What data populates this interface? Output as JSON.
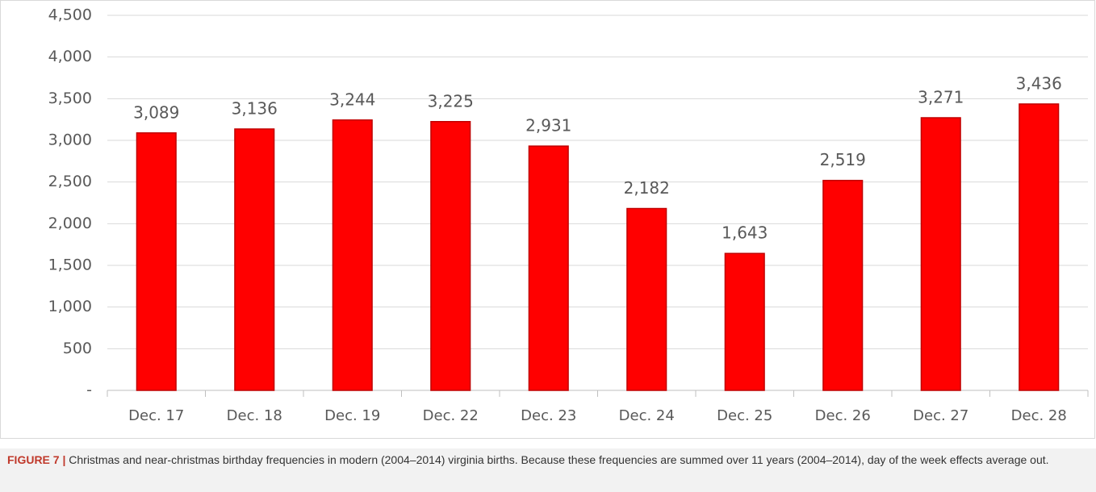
{
  "chart_data": {
    "type": "bar",
    "categories": [
      "Dec. 17",
      "Dec. 18",
      "Dec. 19",
      "Dec. 22",
      "Dec. 23",
      "Dec. 24",
      "Dec. 25",
      "Dec. 26",
      "Dec. 27",
      "Dec. 28"
    ],
    "values": [
      3089,
      3136,
      3244,
      3225,
      2931,
      2182,
      1643,
      2519,
      3271,
      3436
    ],
    "value_labels": [
      "3,089",
      "3,136",
      "3,244",
      "3,225",
      "2,931",
      "2,182",
      "1,643",
      "2,519",
      "3,271",
      "3,436"
    ],
    "color": "#ff0000",
    "ylim": [
      0,
      4500
    ],
    "yticks": [
      {
        "value": 0,
        "label": "-"
      },
      500,
      {
        "value": 1000,
        "label": "1,000"
      },
      {
        "value": 1500,
        "label": "1,500"
      },
      {
        "value": 2000,
        "label": "2,000"
      },
      {
        "value": 2500,
        "label": "2,500"
      },
      {
        "value": 3000,
        "label": "3,000"
      },
      {
        "value": 3500,
        "label": "3,500"
      },
      {
        "value": 4000,
        "label": "4,000"
      },
      {
        "value": 4500,
        "label": "4,500"
      }
    ],
    "grid": true
  },
  "caption": {
    "label": "FIGURE 7 |",
    "text": "Christmas and near-christmas birthday frequencies in modern (2004–2014) virginia births. Because these frequencies are summed over 11 years (2004–2014), day of the week effects average out."
  }
}
